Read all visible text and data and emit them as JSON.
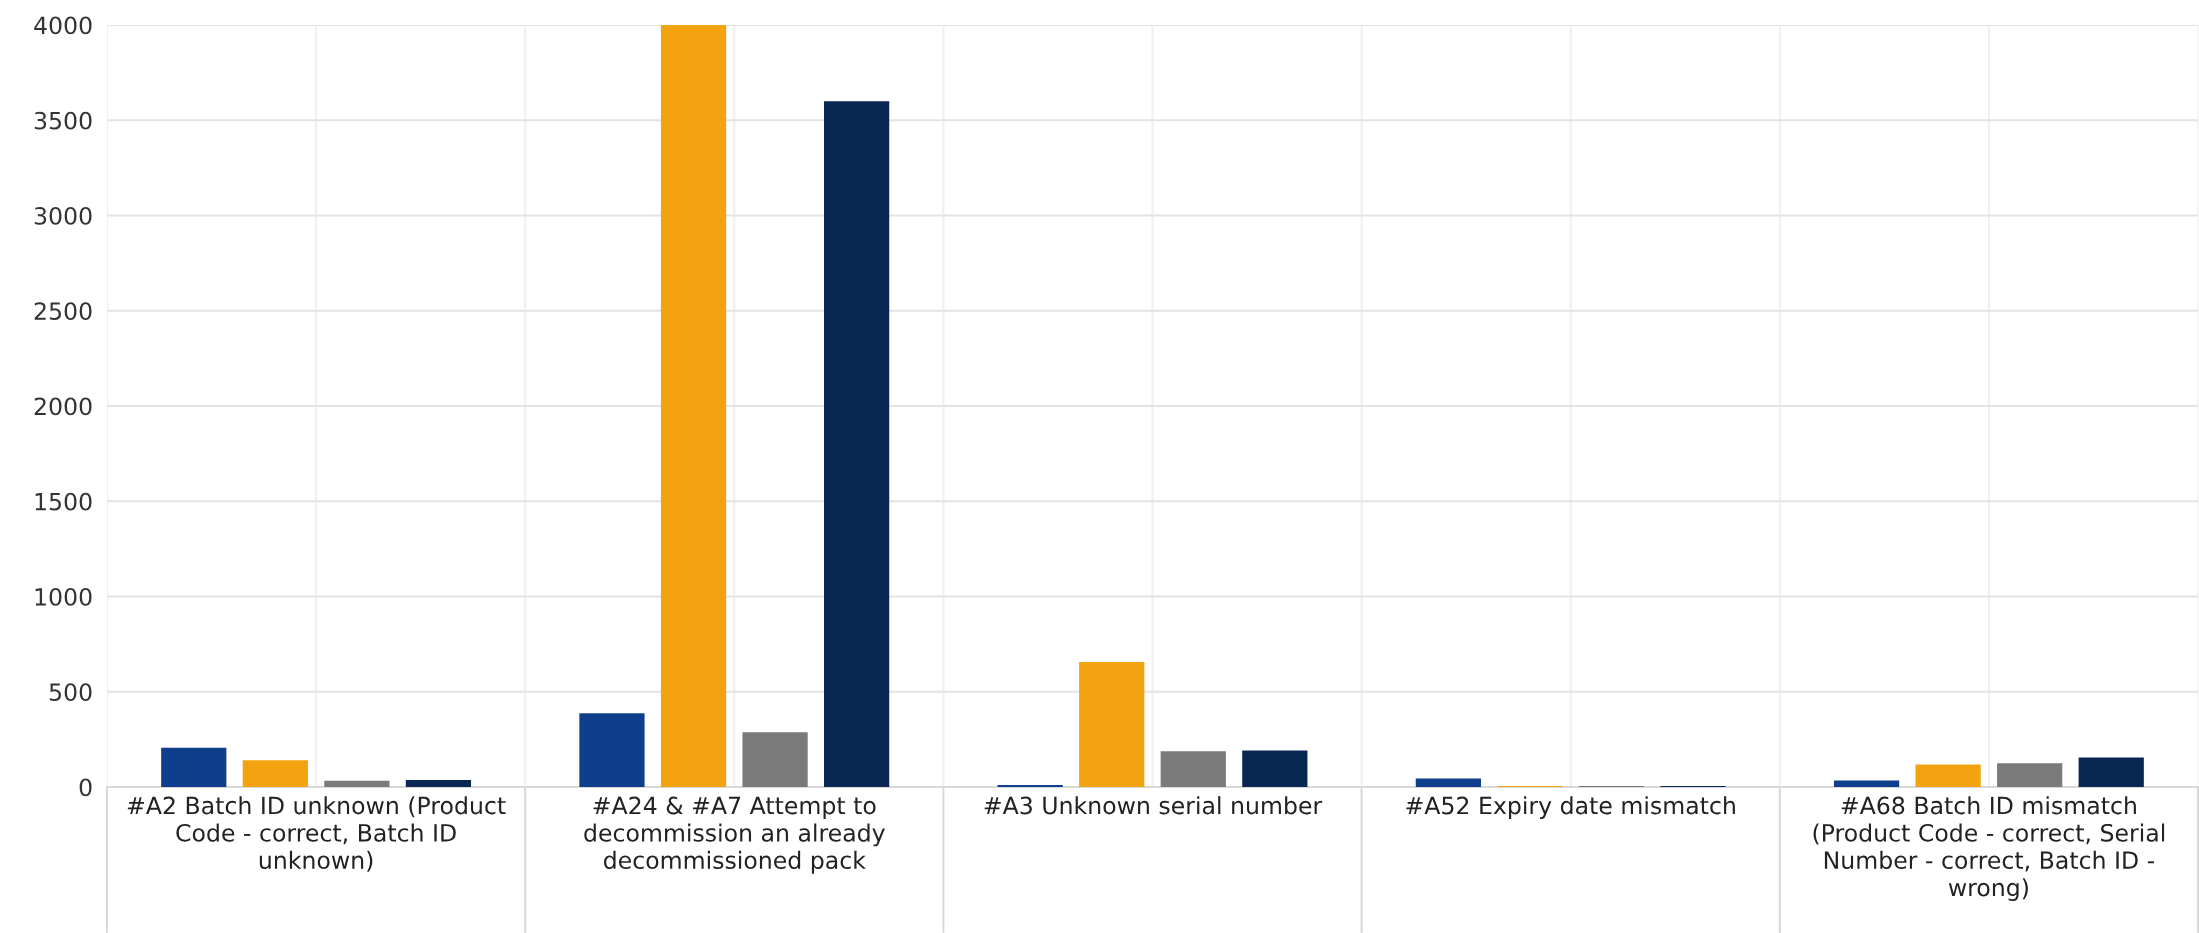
{
  "chart_data": {
    "type": "bar",
    "categories": [
      "#A2 Batch ID unknown (Product Code - correct, Batch ID unknown)",
      "#A24 & #A7 Attempt to decommission an already decommissioned pack",
      "#A3 Unknown serial number",
      "#A52 Expiry date mismatch",
      "#A68 Batch ID mismatch (Product Code - correct, Serial Number - correct, Batch ID - wrong)"
    ],
    "series": [
      {
        "color": "#0f3f8c",
        "values": [
          206,
          387,
          10,
          45,
          34
        ]
      },
      {
        "color": "#f2a30f",
        "values": [
          140,
          4000,
          656,
          5,
          118
        ]
      },
      {
        "color": "#7a7a7a",
        "values": [
          33,
          287,
          188,
          5,
          125
        ]
      },
      {
        "color": "#082753",
        "values": [
          37,
          3600,
          192,
          5,
          155
        ]
      }
    ],
    "ylim": [
      0,
      4000
    ],
    "yticks": [
      0,
      500,
      1000,
      1500,
      2000,
      2500,
      3000,
      3500,
      4000
    ],
    "grid": true
  }
}
